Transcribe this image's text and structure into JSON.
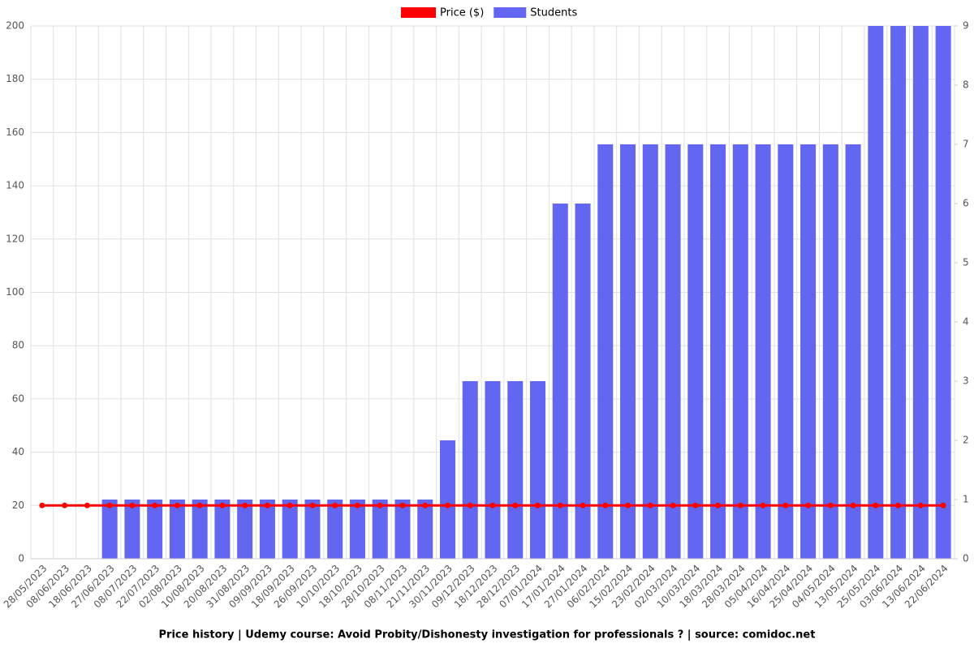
{
  "chart_data": {
    "type": "bar-line",
    "title": "Price history | Udemy course: Avoid  Probity/Dishonesty investigation for professionals ? | source: comidoc.net",
    "categories": [
      "28/05/2023",
      "08/06/2023",
      "18/06/2023",
      "27/06/2023",
      "08/07/2023",
      "22/07/2023",
      "02/08/2023",
      "10/08/2023",
      "20/08/2023",
      "31/08/2023",
      "09/09/2023",
      "18/09/2023",
      "26/09/2023",
      "10/10/2023",
      "18/10/2023",
      "28/10/2023",
      "08/11/2023",
      "21/11/2023",
      "30/11/2023",
      "09/12/2023",
      "18/12/2023",
      "28/12/2023",
      "07/01/2024",
      "17/01/2024",
      "27/01/2024",
      "06/02/2024",
      "15/02/2024",
      "23/02/2024",
      "02/03/2024",
      "10/03/2024",
      "18/03/2024",
      "28/03/2024",
      "05/04/2024",
      "16/04/2024",
      "25/04/2024",
      "04/05/2024",
      "13/05/2024",
      "25/05/2024",
      "03/06/2024",
      "13/06/2024",
      "22/06/2024"
    ],
    "series": [
      {
        "name": "Price ($)",
        "color": "#ff0000",
        "type": "line",
        "values": [
          20,
          20,
          20,
          20,
          20,
          20,
          20,
          20,
          20,
          20,
          20,
          20,
          20,
          20,
          20,
          20,
          20,
          20,
          20,
          20,
          20,
          20,
          20,
          20,
          20,
          20,
          20,
          20,
          20,
          20,
          20,
          20,
          20,
          20,
          20,
          20,
          20,
          20,
          20,
          20,
          20
        ]
      },
      {
        "name": "Students",
        "color": "#6366f1",
        "type": "bar",
        "axis": "y2",
        "values": [
          0,
          0,
          0,
          1,
          1,
          1,
          1,
          1,
          1,
          1,
          1,
          1,
          1,
          1,
          1,
          1,
          1,
          1,
          2,
          3,
          3,
          3,
          3,
          6,
          6,
          7,
          7,
          7,
          7,
          7,
          7,
          7,
          7,
          7,
          7,
          7,
          7,
          9,
          9,
          9,
          9
        ]
      }
    ],
    "ylim": [
      0,
      200
    ],
    "yticks": [
      0,
      20,
      40,
      60,
      80,
      100,
      120,
      140,
      160,
      180,
      200
    ],
    "y2lim": [
      0,
      9
    ],
    "y2ticks": [
      0,
      1,
      2,
      3,
      4,
      5,
      6,
      7,
      8,
      9
    ],
    "grid": true,
    "legend": "top"
  }
}
